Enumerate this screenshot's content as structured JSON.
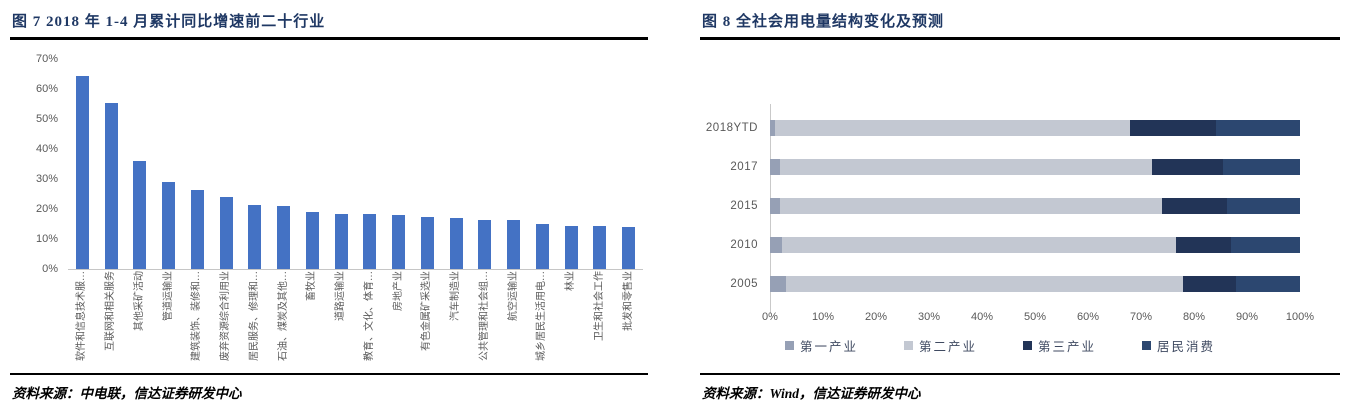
{
  "chart_data": [
    {
      "type": "bar",
      "title": "图 7 2018 年 1-4 月累计同比增速前二十行业",
      "source_note": "资料来源：中电联，信达证券研发中心",
      "categories": [
        "软件和信息技术服…",
        "互联网和相关服务",
        "其他采矿活动",
        "管道运输业",
        "建筑装饰、装修和…",
        "废弃资源综合利用业",
        "居民服务、修理和…",
        "石油、煤炭及其他…",
        "畜牧业",
        "道路运输业",
        "教育、文化、体育…",
        "房地产业",
        "有色金属矿采选业",
        "汽车制造业",
        "公共管理和社会组…",
        "航空运输业",
        "城乡居民生活用电…",
        "林业",
        "卫生和社会工作",
        "批发和零售业"
      ],
      "values": [
        64.5,
        55.5,
        36,
        29,
        26.5,
        24,
        21.5,
        21,
        19,
        18.5,
        18.5,
        18,
        17.5,
        17,
        16.5,
        16.5,
        15,
        14.5,
        14.5,
        14
      ],
      "unit": "%",
      "xlabel": "",
      "ylabel": "",
      "ylim": [
        0,
        70
      ],
      "ytick_labels": [
        "0%",
        "10%",
        "20%",
        "30%",
        "40%",
        "50%",
        "60%",
        "70%"
      ],
      "bar_color": "#4472c4",
      "grid": false,
      "legend_position": "none"
    },
    {
      "type": "bar",
      "orientation": "horizontal",
      "stacked": true,
      "title": "图 8 全社会用电量结构变化及预测",
      "source_note": "资料来源：Wind，信达证券研发中心",
      "categories": [
        "2018YTD",
        "2017",
        "2015",
        "2010",
        "2005"
      ],
      "series": [
        {
          "name": "第一产业",
          "color": "#96a0b5",
          "values": [
            1.0,
            1.9,
            1.8,
            2.2,
            3.0
          ]
        },
        {
          "name": "第二产业",
          "color": "#c3c8d2",
          "values": [
            67.0,
            70.2,
            72.2,
            74.4,
            75.0
          ]
        },
        {
          "name": "第三产业",
          "color": "#223457",
          "values": [
            16.2,
            13.4,
            12.3,
            10.4,
            10.0
          ]
        },
        {
          "name": "居民消费",
          "color": "#2c4770",
          "values": [
            15.8,
            14.5,
            13.7,
            13.0,
            12.0
          ]
        }
      ],
      "unit": "%",
      "xlabel": "",
      "ylabel": "",
      "xlim": [
        0,
        100
      ],
      "xtick_labels": [
        "0%",
        "10%",
        "20%",
        "30%",
        "40%",
        "50%",
        "60%",
        "70%",
        "80%",
        "90%",
        "100%"
      ],
      "grid": false,
      "legend_position": "bottom"
    }
  ],
  "styles": {
    "title_color": "#1f3864",
    "bar_blue": "#4472c4",
    "axis_text_color": "#595959",
    "rule_color": "#000000"
  }
}
